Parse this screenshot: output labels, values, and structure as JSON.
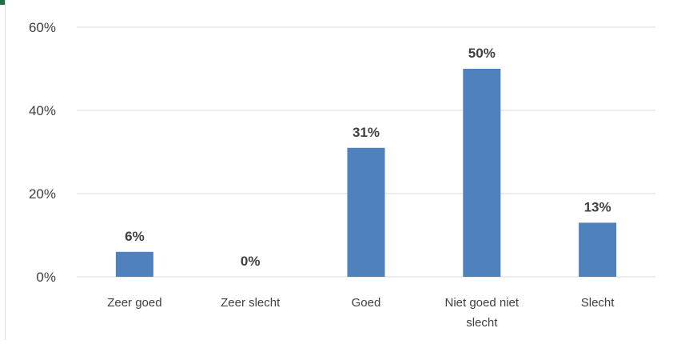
{
  "chart_data": {
    "type": "bar",
    "title": "",
    "xlabel": "",
    "ylabel": "",
    "categories": [
      "Zeer goed",
      "Zeer slecht",
      "Goed",
      "Niet goed niet slecht",
      "Slecht"
    ],
    "category_lines": [
      [
        "Zeer goed"
      ],
      [
        "Zeer slecht"
      ],
      [
        "Goed"
      ],
      [
        "Niet goed niet",
        "slecht"
      ],
      [
        "Slecht"
      ]
    ],
    "values": [
      6,
      0,
      31,
      50,
      13
    ],
    "value_labels": [
      "6%",
      "0%",
      "31%",
      "50%",
      "13%"
    ],
    "yticks": [
      0,
      20,
      40,
      60
    ],
    "ytick_labels": [
      "0%",
      "20%",
      "40%",
      "60%"
    ],
    "ylim": [
      0,
      60
    ],
    "grid": true,
    "legend": "none"
  },
  "colors": {
    "bar": "#4f81bd",
    "gridline": "#d9d9d9",
    "axis": "#d9d9d9",
    "text": "#404040",
    "accent": "#1f6f3f"
  }
}
